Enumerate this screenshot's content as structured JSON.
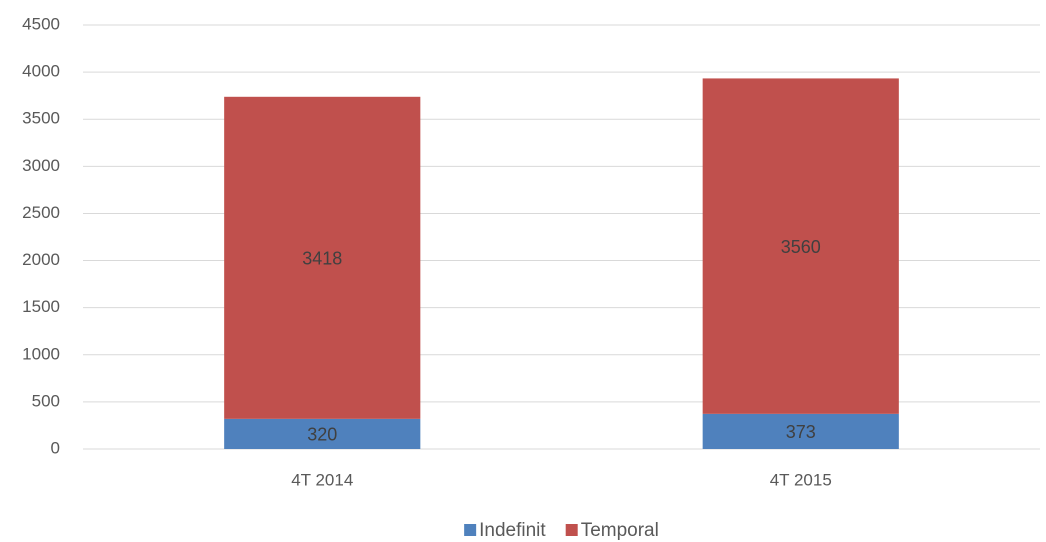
{
  "chart_data": {
    "type": "stacked_bar",
    "categories": [
      "4T 2014",
      "4T 2015"
    ],
    "series": [
      {
        "name": "Indefinit",
        "color": "#4f81bd",
        "values": [
          320,
          373
        ]
      },
      {
        "name": "Temporal",
        "color": "#c0504d",
        "values": [
          3418,
          3560
        ]
      }
    ],
    "ylim": [
      0,
      4500
    ],
    "yticks": [
      0,
      500,
      1000,
      1500,
      2000,
      2500,
      3000,
      3500,
      4000,
      4500
    ],
    "grid": true,
    "legend": "bottom",
    "data_labels": true
  }
}
